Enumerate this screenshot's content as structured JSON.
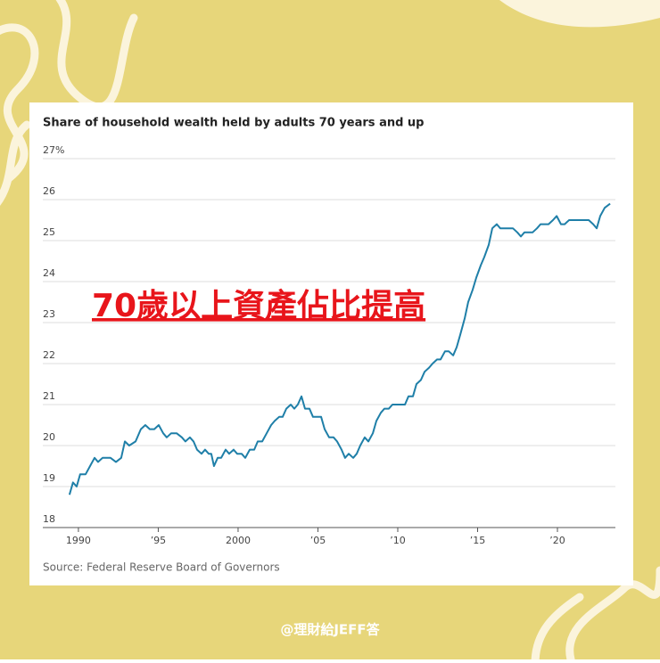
{
  "chart_data": {
    "type": "line",
    "title": "Share of household wealth held by adults 70 years and up",
    "source": "Source: Federal Reserve Board of Governors",
    "annotation": "70歲以上資產佔比提高",
    "x": [
      1989.44,
      1989.66,
      1989.89,
      1990.11,
      1990.45,
      1990.73,
      1991.01,
      1991.23,
      1991.51,
      1992.01,
      1992.35,
      1992.68,
      1992.91,
      1993.18,
      1993.58,
      1993.91,
      1994.19,
      1994.47,
      1994.75,
      1995.03,
      1995.31,
      1995.53,
      1995.81,
      1996.15,
      1996.48,
      1996.7,
      1996.98,
      1997.21,
      1997.43,
      1997.71,
      1997.93,
      1998.16,
      1998.32,
      1998.49,
      1998.72,
      1998.94,
      1999.22,
      1999.44,
      1999.72,
      1999.94,
      2000.22,
      2000.45,
      2000.73,
      2001.01,
      2001.23,
      2001.51,
      2001.79,
      2002.07,
      2002.29,
      2002.57,
      2002.79,
      2003.02,
      2003.3,
      2003.52,
      2003.74,
      2003.97,
      2004.19,
      2004.47,
      2004.69,
      2005.2,
      2005.42,
      2005.7,
      2005.98,
      2006.2,
      2006.48,
      2006.7,
      2006.93,
      2007.21,
      2007.43,
      2007.65,
      2007.93,
      2008.16,
      2008.44,
      2008.66,
      2008.94,
      2009.16,
      2009.44,
      2009.67,
      2010.45,
      2010.67,
      2010.95,
      2011.17,
      2011.45,
      2011.68,
      2011.96,
      2012.18,
      2012.46,
      2012.68,
      2012.96,
      2013.19,
      2013.47,
      2013.69,
      2013.91,
      2014.19,
      2014.41,
      2014.69,
      2014.92,
      2015.2,
      2015.42,
      2015.7,
      2015.92,
      2016.2,
      2016.42,
      2017.21,
      2017.49,
      2017.71,
      2017.93,
      2018.44,
      2018.72,
      2018.94,
      2019.44,
      2019.72,
      2019.95,
      2020.22,
      2020.45,
      2020.73,
      2021.96,
      2022.24,
      2022.46,
      2022.68,
      2022.96,
      2023.3
    ],
    "series": [
      {
        "name": "Share",
        "color": "#1f7fa8",
        "values": [
          18.8,
          19.1,
          19.0,
          19.3,
          19.3,
          19.5,
          19.7,
          19.6,
          19.7,
          19.7,
          19.6,
          19.7,
          20.1,
          20.0,
          20.1,
          20.4,
          20.5,
          20.4,
          20.4,
          20.5,
          20.3,
          20.2,
          20.3,
          20.3,
          20.2,
          20.1,
          20.2,
          20.1,
          19.9,
          19.8,
          19.9,
          19.8,
          19.8,
          19.5,
          19.7,
          19.7,
          19.9,
          19.8,
          19.9,
          19.8,
          19.8,
          19.7,
          19.9,
          19.9,
          20.1,
          20.1,
          20.3,
          20.5,
          20.6,
          20.7,
          20.7,
          20.9,
          21.0,
          20.9,
          21.0,
          21.2,
          20.9,
          20.9,
          20.7,
          20.7,
          20.4,
          20.2,
          20.2,
          20.1,
          19.9,
          19.7,
          19.8,
          19.7,
          19.8,
          20.0,
          20.2,
          20.1,
          20.3,
          20.6,
          20.8,
          20.9,
          20.9,
          21.0,
          21.0,
          21.2,
          21.2,
          21.5,
          21.6,
          21.8,
          21.9,
          22.0,
          22.1,
          22.1,
          22.3,
          22.3,
          22.2,
          22.4,
          22.7,
          23.1,
          23.5,
          23.8,
          24.1,
          24.4,
          24.6,
          24.9,
          25.3,
          25.4,
          25.3,
          25.3,
          25.2,
          25.1,
          25.2,
          25.2,
          25.3,
          25.4,
          25.4,
          25.5,
          25.6,
          25.4,
          25.4,
          25.5,
          25.5,
          25.4,
          25.3,
          25.6,
          25.8,
          25.9
        ]
      }
    ],
    "xlim": [
      1987.77,
      2023.63
    ],
    "xticks": [
      1990,
      {
        "value": 1995,
        "label": "’95"
      },
      2000,
      {
        "value": 2005,
        "label": "’05"
      },
      {
        "value": 2010,
        "label": "’10"
      },
      {
        "value": 2015,
        "label": "’15"
      },
      {
        "value": 2020,
        "label": "’20"
      }
    ],
    "ylim": [
      18,
      27
    ],
    "yticks": [
      18,
      19,
      20,
      21,
      22,
      23,
      24,
      25,
      26,
      {
        "value": 27,
        "label": "27%"
      }
    ],
    "grid": true
  },
  "watermark": "@理財給JEFF答"
}
